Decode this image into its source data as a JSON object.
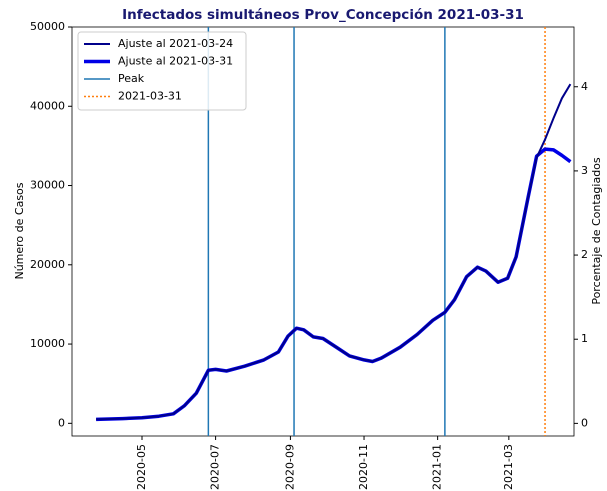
{
  "chart_data": {
    "type": "line",
    "title": "Infectados simultáneos Prov_Concepción 2021-03-31",
    "ylabel": "Número de Casos",
    "y2label": "Porcentaje de Contagiados",
    "x": [
      "2020-03-24",
      "2020-04-15",
      "2020-05-01",
      "2020-05-15",
      "2020-05-27",
      "2020-06-05",
      "2020-06-15",
      "2020-06-25",
      "2020-07-01",
      "2020-07-10",
      "2020-07-25",
      "2020-08-10",
      "2020-08-22",
      "2020-08-30",
      "2020-09-06",
      "2020-09-12",
      "2020-09-20",
      "2020-09-28",
      "2020-10-10",
      "2020-10-20",
      "2020-11-01",
      "2020-11-08",
      "2020-11-15",
      "2020-12-01",
      "2020-12-15",
      "2020-12-28",
      "2021-01-07",
      "2021-01-15",
      "2021-01-25",
      "2021-02-03",
      "2021-02-10",
      "2021-02-20",
      "2021-02-28",
      "2021-03-07",
      "2021-03-17",
      "2021-03-24",
      "2021-03-31",
      "2021-04-07",
      "2021-04-14",
      "2021-04-21"
    ],
    "series": [
      {
        "name": "Ajuste al 2021-03-24",
        "color": "#00008b",
        "width": 2,
        "values": [
          500,
          600,
          700,
          900,
          1200,
          2200,
          3800,
          6700,
          6800,
          6600,
          7200,
          8000,
          9000,
          11000,
          12000,
          11800,
          10900,
          10700,
          9500,
          8500,
          8000,
          7800,
          8200,
          9600,
          11200,
          13000,
          14000,
          15600,
          18500,
          19700,
          19200,
          17800,
          18300,
          21000,
          28500,
          33500,
          35800,
          38500,
          41000,
          42800
        ]
      },
      {
        "name": "Ajuste al 2021-03-31",
        "color": "#0000e6",
        "width": 3.5,
        "values": [
          500,
          600,
          700,
          900,
          1200,
          2200,
          3800,
          6700,
          6800,
          6600,
          7200,
          8000,
          9000,
          11000,
          12000,
          11800,
          10900,
          10700,
          9500,
          8500,
          8000,
          7800,
          8200,
          9600,
          11200,
          13000,
          14000,
          15600,
          18500,
          19700,
          19200,
          17800,
          18300,
          21000,
          28500,
          33700,
          34600,
          34500,
          33800,
          33000
        ]
      }
    ],
    "vlines": [
      {
        "name": "Peak",
        "color": "#1f77b4",
        "style": "solid",
        "x": [
          "2020-06-25",
          "2020-09-04",
          "2021-01-07"
        ]
      },
      {
        "name": "2021-03-31",
        "color": "#ff7f0e",
        "style": "dotted",
        "x": [
          "2021-03-31"
        ]
      }
    ],
    "xlim": [
      "2020-03-04",
      "2021-04-24"
    ],
    "xticks": [
      "2020-05",
      "2020-07",
      "2020-09",
      "2020-11",
      "2021-01",
      "2021-03"
    ],
    "ylim": [
      -1600,
      50000
    ],
    "yticks": [
      0,
      10000,
      20000,
      30000,
      40000,
      50000
    ],
    "y2lim": [
      -0.15,
      4.71
    ],
    "y2ticks": [
      0,
      1,
      2,
      3,
      4
    ],
    "legend": "upper left",
    "grid": false
  }
}
